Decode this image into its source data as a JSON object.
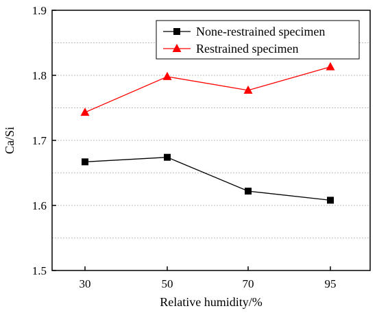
{
  "chart_data": {
    "type": "line",
    "title": "",
    "xlabel": "Relative humidity/%",
    "ylabel": "Ca/Si",
    "categories": [
      "30",
      "50",
      "70",
      "95"
    ],
    "ylim": [
      1.5,
      1.9
    ],
    "yticks": [
      "1.5",
      "1.6",
      "1.7",
      "1.8",
      "1.9"
    ],
    "grid": "horizontal dashed",
    "legend_position": "top-right",
    "series": [
      {
        "name": "None-restrained specimen",
        "marker": "square",
        "color": "#000000",
        "values": [
          1.667,
          1.674,
          1.622,
          1.608
        ]
      },
      {
        "name": "Restrained specimen",
        "marker": "triangle",
        "color": "#ff0000",
        "values": [
          1.743,
          1.798,
          1.777,
          1.813
        ]
      }
    ]
  }
}
